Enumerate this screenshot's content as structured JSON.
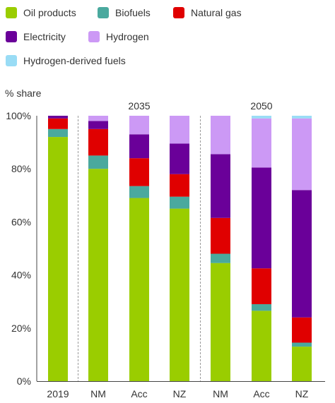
{
  "chart_data": {
    "type": "bar",
    "stacked": true,
    "ylabel": "% share",
    "ylim": [
      0,
      100
    ],
    "yticks": [
      "0%",
      "20%",
      "40%",
      "60%",
      "80%",
      "100%"
    ],
    "categories": [
      "2019",
      "NM",
      "Acc",
      "NZ",
      "NM",
      "Acc",
      "NZ"
    ],
    "group_labels": [
      "2035",
      "2050"
    ],
    "grid": false,
    "legend_position": "top",
    "series": [
      {
        "name": "Oil products",
        "color": "#9acd00",
        "values": [
          92,
          80,
          69,
          65,
          44.5,
          26.5,
          13
        ]
      },
      {
        "name": "Biofuels",
        "color": "#4aa99e",
        "values": [
          3,
          5,
          4.5,
          4.5,
          3.5,
          2.5,
          1.5
        ]
      },
      {
        "name": "Natural gas",
        "color": "#e00000",
        "values": [
          4,
          10,
          10.5,
          8.5,
          13.5,
          13.5,
          9.5
        ]
      },
      {
        "name": "Electricity",
        "color": "#6a0099",
        "values": [
          1,
          3,
          9,
          11.5,
          24,
          38,
          48
        ]
      },
      {
        "name": "Hydrogen",
        "color": "#cc99f5",
        "values": [
          0,
          2,
          7,
          10.5,
          14.5,
          18.5,
          27
        ]
      },
      {
        "name": "Hydrogen-derived fuels",
        "color": "#99dcf5",
        "values": [
          0,
          0,
          0,
          0,
          0,
          1,
          1
        ]
      }
    ]
  }
}
